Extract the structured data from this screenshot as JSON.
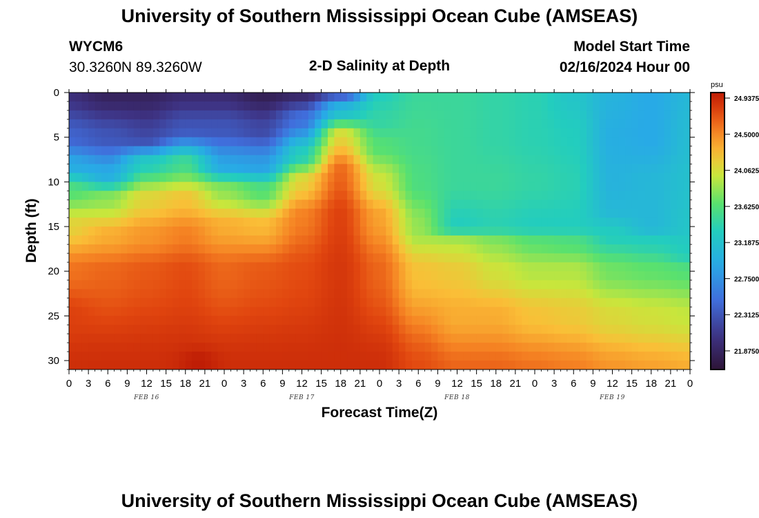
{
  "header": {
    "title": "University of Southern Mississippi Ocean Cube (AMSEAS)",
    "station_id": "WYCM6",
    "coordinates": "30.3260N  89.3260W",
    "model_start_label": "Model Start Time",
    "model_start_value": "02/16/2024 Hour 00"
  },
  "footer": {
    "title": "University of Southern Mississippi Ocean Cube (AMSEAS)"
  },
  "chart_data": {
    "type": "heatmap",
    "title": "2-D Salinity at Depth",
    "xlabel": "Forecast Time(Z)",
    "ylabel": "Depth (ft)",
    "x_hours_range": [
      0,
      96
    ],
    "ylim": [
      0,
      31
    ],
    "x_ticks": [
      "0",
      "3",
      "6",
      "9",
      "12",
      "15",
      "18",
      "21",
      "0",
      "3",
      "6",
      "9",
      "12",
      "15",
      "18",
      "21",
      "0",
      "3",
      "6",
      "9",
      "12",
      "15",
      "18",
      "21",
      "0",
      "3",
      "6",
      "9",
      "12",
      "15",
      "18",
      "21",
      "0"
    ],
    "y_ticks": [
      "0",
      "5",
      "10",
      "15",
      "20",
      "25",
      "30"
    ],
    "date_labels": [
      {
        "hour": 12,
        "label": "FEB 16"
      },
      {
        "hour": 36,
        "label": "FEB 17"
      },
      {
        "hour": 60,
        "label": "FEB 18"
      },
      {
        "hour": 84,
        "label": "FEB 19"
      }
    ],
    "colorbar": {
      "unit": "psu",
      "min": 21.65,
      "max": 24.95,
      "labels": [
        "24.9375",
        "24.5000",
        "24.0625",
        "23.6250",
        "23.1875",
        "22.7500",
        "22.3125",
        "21.8750"
      ]
    },
    "profiles": [
      {
        "hour": 0,
        "depths": [
          0,
          5,
          8,
          11,
          15,
          20,
          25,
          31
        ],
        "values": [
          22.0,
          22.4,
          22.9,
          23.6,
          24.1,
          24.55,
          24.75,
          24.85
        ]
      },
      {
        "hour": 6,
        "depths": [
          0,
          5,
          9,
          12,
          16,
          20,
          31
        ],
        "values": [
          21.85,
          22.3,
          22.9,
          23.8,
          24.3,
          24.6,
          24.85
        ]
      },
      {
        "hour": 12,
        "depths": [
          0,
          5,
          8,
          12,
          16,
          20,
          31
        ],
        "values": [
          21.85,
          22.2,
          23.3,
          24.1,
          24.4,
          24.65,
          24.85
        ]
      },
      {
        "hour": 18,
        "depths": [
          0,
          4,
          8,
          12,
          16,
          20,
          31
        ],
        "values": [
          21.95,
          22.3,
          23.5,
          24.2,
          24.5,
          24.7,
          24.85
        ]
      },
      {
        "hour": 24,
        "depths": [
          0,
          4,
          8,
          11,
          15,
          20,
          31
        ],
        "values": [
          21.95,
          22.3,
          22.85,
          23.8,
          24.3,
          24.6,
          24.85
        ]
      },
      {
        "hour": 30,
        "depths": [
          0,
          4,
          8,
          11,
          15,
          20,
          31
        ],
        "values": [
          21.8,
          22.2,
          22.8,
          23.6,
          24.25,
          24.65,
          24.85
        ]
      },
      {
        "hour": 36,
        "depths": [
          0,
          3,
          7,
          10,
          14,
          20,
          31
        ],
        "values": [
          21.9,
          22.5,
          23.3,
          24.1,
          24.5,
          24.7,
          24.85
        ]
      },
      {
        "hour": 42,
        "depths": [
          0,
          2,
          5,
          9,
          14,
          20,
          31
        ],
        "values": [
          22.3,
          23.1,
          24.1,
          24.6,
          24.75,
          24.8,
          24.85
        ]
      },
      {
        "hour": 48,
        "depths": [
          0,
          3,
          6,
          10,
          14,
          20,
          31
        ],
        "values": [
          23.3,
          23.4,
          23.6,
          24.0,
          24.35,
          24.6,
          24.85
        ]
      },
      {
        "hour": 54,
        "depths": [
          0,
          5,
          10,
          15,
          20,
          31
        ],
        "values": [
          23.45,
          23.5,
          23.55,
          23.8,
          24.2,
          24.7
        ]
      },
      {
        "hour": 60,
        "depths": [
          0,
          5,
          10,
          15,
          17,
          20,
          25,
          31
        ],
        "values": [
          23.45,
          23.45,
          23.45,
          23.3,
          23.95,
          24.15,
          24.3,
          24.6
        ]
      },
      {
        "hour": 66,
        "depths": [
          0,
          5,
          10,
          15,
          17,
          20,
          25,
          31
        ],
        "values": [
          23.4,
          23.4,
          23.45,
          23.35,
          23.8,
          24.0,
          24.3,
          24.6
        ]
      },
      {
        "hour": 72,
        "depths": [
          0,
          5,
          10,
          15,
          17,
          20,
          25,
          31
        ],
        "values": [
          23.35,
          23.35,
          23.4,
          23.3,
          23.65,
          23.9,
          24.2,
          24.55
        ]
      },
      {
        "hour": 78,
        "depths": [
          0,
          5,
          10,
          15,
          17,
          20,
          25,
          31
        ],
        "values": [
          23.2,
          23.3,
          23.35,
          23.3,
          23.6,
          23.9,
          24.15,
          24.5
        ]
      },
      {
        "hour": 84,
        "depths": [
          0,
          5,
          10,
          13,
          16,
          20,
          25,
          31
        ],
        "values": [
          23.0,
          22.95,
          23.0,
          23.05,
          23.3,
          23.7,
          24.05,
          24.4
        ]
      },
      {
        "hour": 90,
        "depths": [
          0,
          5,
          10,
          15,
          17,
          20,
          25,
          31
        ],
        "values": [
          22.9,
          22.9,
          23.05,
          23.05,
          23.35,
          23.65,
          24.0,
          24.35
        ]
      },
      {
        "hour": 96,
        "depths": [
          0,
          5,
          10,
          15,
          18,
          20,
          25,
          31
        ],
        "values": [
          23.05,
          23.1,
          23.15,
          23.2,
          23.3,
          23.6,
          23.95,
          24.3
        ]
      }
    ],
    "hotspots": [
      {
        "hour": 20,
        "depth": 30.3,
        "radius_h": 3.0,
        "radius_d": 1.5,
        "value": 24.95
      }
    ]
  }
}
